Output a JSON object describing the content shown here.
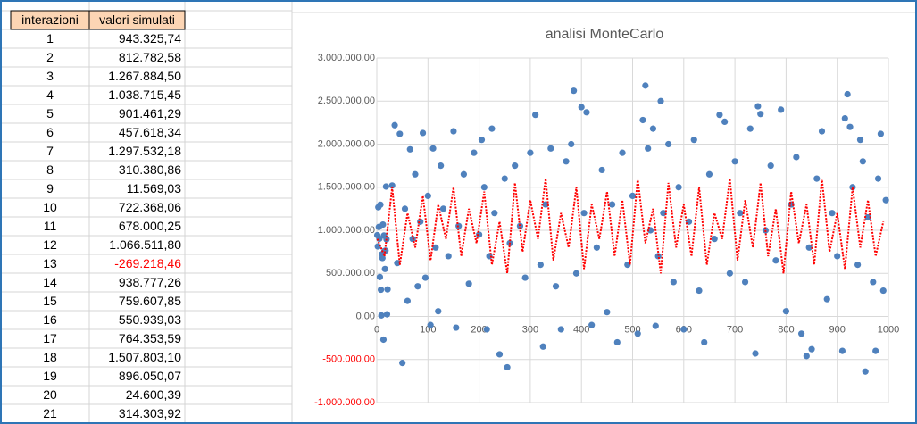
{
  "table": {
    "header": [
      "interazioni",
      "valori simulati"
    ],
    "negative_color": "#ff0000",
    "rows": [
      [
        "1",
        "943.325,74"
      ],
      [
        "2",
        "812.782,58"
      ],
      [
        "3",
        "1.267.884,50"
      ],
      [
        "4",
        "1.038.715,45"
      ],
      [
        "5",
        "901.461,29"
      ],
      [
        "6",
        "457.618,34"
      ],
      [
        "7",
        "1.297.532,18"
      ],
      [
        "8",
        "310.380,86"
      ],
      [
        "9",
        "11.569,03"
      ],
      [
        "10",
        "722.368,06"
      ],
      [
        "11",
        "678.000,25"
      ],
      [
        "12",
        "1.066.511,80"
      ],
      [
        "13",
        "-269.218,46"
      ],
      [
        "14",
        "938.777,26"
      ],
      [
        "15",
        "759.607,85"
      ],
      [
        "16",
        "550.939,03"
      ],
      [
        "17",
        "764.353,59"
      ],
      [
        "18",
        "1.507.803,10"
      ],
      [
        "19",
        "896.050,07"
      ],
      [
        "20",
        "24.600,39"
      ],
      [
        "21",
        "314.303,92"
      ]
    ]
  },
  "chart_data": {
    "type": "scatter",
    "title": "analisi MonteCarlo",
    "grid": true,
    "negative_color": "#ff0000",
    "xlim": [
      0,
      1000
    ],
    "xticks": [
      0,
      100,
      200,
      300,
      400,
      500,
      600,
      700,
      800,
      900,
      1000
    ],
    "ylim": [
      -1000000,
      3000000
    ],
    "yticks": [
      {
        "value": -1000000,
        "label": "-1.000.000,00"
      },
      {
        "value": -500000,
        "label": "-500.000,00"
      },
      {
        "value": 0,
        "label": "0,00"
      },
      {
        "value": 500000,
        "label": "500.000,00"
      },
      {
        "value": 1000000,
        "label": "1.000.000,00"
      },
      {
        "value": 1500000,
        "label": "1.500.000,00"
      },
      {
        "value": 2000000,
        "label": "2.000.000,00"
      },
      {
        "value": 2500000,
        "label": "2.500.000,00"
      },
      {
        "value": 3000000,
        "label": "3.000.000,00"
      }
    ],
    "series": [
      {
        "type": "scatter",
        "color": "#4f81bd",
        "x": [
          1,
          2,
          3,
          4,
          5,
          6,
          7,
          8,
          9,
          10,
          11,
          12,
          13,
          14,
          15,
          16,
          17,
          18,
          19,
          20,
          21,
          30,
          35,
          40,
          45,
          50,
          55,
          60,
          65,
          70,
          75,
          80,
          85,
          90,
          95,
          100,
          105,
          110,
          115,
          120,
          125,
          130,
          140,
          150,
          155,
          160,
          170,
          180,
          190,
          200,
          205,
          210,
          215,
          220,
          225,
          230,
          240,
          250,
          255,
          260,
          270,
          280,
          290,
          300,
          310,
          320,
          325,
          330,
          340,
          350,
          360,
          370,
          380,
          385,
          390,
          400,
          405,
          410,
          420,
          430,
          440,
          450,
          460,
          470,
          480,
          490,
          500,
          510,
          520,
          525,
          530,
          535,
          540,
          545,
          550,
          555,
          560,
          570,
          580,
          590,
          600,
          610,
          620,
          630,
          640,
          650,
          660,
          670,
          680,
          690,
          700,
          710,
          720,
          730,
          740,
          745,
          750,
          760,
          770,
          780,
          790,
          800,
          810,
          820,
          830,
          840,
          845,
          850,
          860,
          870,
          880,
          890,
          900,
          910,
          915,
          920,
          925,
          930,
          940,
          945,
          950,
          955,
          960,
          970,
          975,
          980,
          985,
          990,
          995
        ],
        "values": [
          943325.74,
          812782.58,
          1267884.5,
          1038715.45,
          901461.29,
          457618.34,
          1297532.18,
          310380.86,
          11569.03,
          722368.06,
          678000.25,
          1066511.8,
          -269218.46,
          938777.26,
          759607.85,
          550939.03,
          764353.59,
          1507803.1,
          896050.07,
          24600.39,
          314303.92,
          1520000,
          2220000,
          620000,
          2120000,
          -540000,
          1250000,
          180000,
          1940000,
          900000,
          1650000,
          350000,
          1100000,
          2130000,
          450000,
          1400000,
          -100000,
          1950000,
          800000,
          60000,
          1750000,
          1250000,
          700000,
          2150000,
          -130000,
          1050000,
          1650000,
          380000,
          1900000,
          950000,
          2050000,
          1500000,
          -150000,
          700000,
          2180000,
          1200000,
          -440000,
          1600000,
          -590000,
          850000,
          1750000,
          1050000,
          450000,
          1900000,
          2340000,
          600000,
          -350000,
          1300000,
          1950000,
          350000,
          -150000,
          1800000,
          2000000,
          2620000,
          500000,
          2430000,
          1200000,
          2370000,
          -100000,
          800000,
          1700000,
          50000,
          1300000,
          -300000,
          1900000,
          600000,
          1400000,
          -200000,
          2280000,
          2680000,
          1950000,
          1000000,
          2180000,
          -110000,
          700000,
          2500000,
          1200000,
          2000000,
          400000,
          1500000,
          -150000,
          1100000,
          2050000,
          300000,
          -300000,
          1650000,
          900000,
          2340000,
          2260000,
          500000,
          1800000,
          1200000,
          400000,
          2180000,
          -430000,
          2440000,
          2350000,
          1000000,
          1750000,
          650000,
          2400000,
          60000,
          1300000,
          1850000,
          -200000,
          -460000,
          800000,
          -380000,
          1600000,
          2150000,
          200000,
          1200000,
          700000,
          -400000,
          2300000,
          2580000,
          2200000,
          1500000,
          600000,
          2050000,
          1800000,
          -640000,
          1150000,
          400000,
          -400000,
          1600000,
          2120000,
          300000,
          1350000
        ]
      },
      {
        "type": "line",
        "color": "#ff0000",
        "x": [
          1,
          15,
          30,
          45,
          60,
          75,
          90,
          105,
          120,
          135,
          150,
          165,
          180,
          195,
          210,
          225,
          240,
          255,
          270,
          285,
          300,
          315,
          330,
          345,
          360,
          375,
          390,
          405,
          420,
          435,
          450,
          465,
          480,
          495,
          510,
          525,
          540,
          555,
          570,
          585,
          600,
          615,
          630,
          645,
          660,
          675,
          690,
          705,
          720,
          735,
          750,
          765,
          780,
          795,
          810,
          825,
          840,
          855,
          870,
          885,
          900,
          915,
          930,
          945,
          960,
          975,
          990
        ],
        "values": [
          900000,
          700000,
          1500000,
          600000,
          1200000,
          800000,
          1400000,
          650000,
          1300000,
          900000,
          1500000,
          700000,
          1250000,
          850000,
          1450000,
          600000,
          1100000,
          500000,
          1550000,
          750000,
          1350000,
          900000,
          1600000,
          650000,
          1200000,
          800000,
          1500000,
          550000,
          1300000,
          900000,
          1450000,
          700000,
          1350000,
          600000,
          1600000,
          850000,
          1250000,
          500000,
          1550000,
          800000,
          1300000,
          700000,
          1500000,
          600000,
          1200000,
          900000,
          1600000,
          650000,
          1350000,
          800000,
          1550000,
          700000,
          1250000,
          500000,
          1450000,
          850000,
          1300000,
          600000,
          1600000,
          750000,
          1200000,
          550000,
          1500000,
          800000,
          1350000,
          700000,
          1100000
        ]
      }
    ]
  }
}
